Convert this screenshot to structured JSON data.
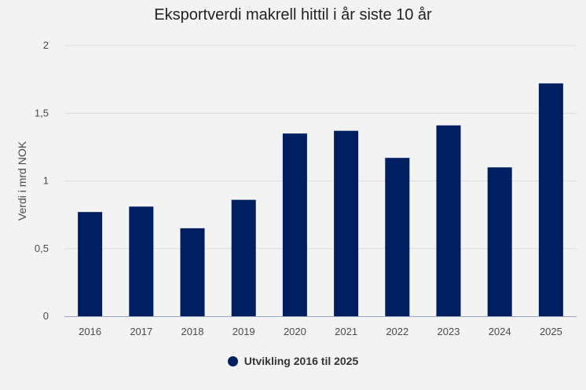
{
  "chart_data": {
    "type": "bar",
    "title": "Eksportverdi makrell hittil i år siste 10 år",
    "xlabel": "",
    "ylabel": "Verdi i mrd NOK",
    "categories": [
      "2016",
      "2017",
      "2018",
      "2019",
      "2020",
      "2021",
      "2022",
      "2023",
      "2024",
      "2025"
    ],
    "series": [
      {
        "name": "Utvikling 2016 til 2025",
        "values": [
          0.77,
          0.81,
          0.65,
          0.86,
          1.35,
          1.37,
          1.17,
          1.41,
          1.1,
          1.72
        ],
        "color": "#001f63"
      }
    ],
    "ylim": [
      0,
      2
    ],
    "yticks": [
      "0",
      "0,5",
      "1",
      "1,5",
      "2"
    ],
    "grid": true,
    "legend_position": "bottom"
  }
}
